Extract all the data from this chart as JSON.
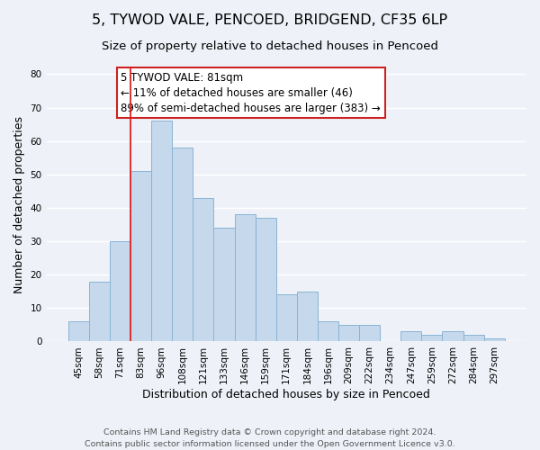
{
  "title": "5, TYWOD VALE, PENCOED, BRIDGEND, CF35 6LP",
  "subtitle": "Size of property relative to detached houses in Pencoed",
  "xlabel": "Distribution of detached houses by size in Pencoed",
  "ylabel": "Number of detached properties",
  "categories": [
    "45sqm",
    "58sqm",
    "71sqm",
    "83sqm",
    "96sqm",
    "108sqm",
    "121sqm",
    "133sqm",
    "146sqm",
    "159sqm",
    "171sqm",
    "184sqm",
    "196sqm",
    "209sqm",
    "222sqm",
    "234sqm",
    "247sqm",
    "259sqm",
    "272sqm",
    "284sqm",
    "297sqm"
  ],
  "values": [
    6,
    18,
    30,
    51,
    66,
    58,
    43,
    34,
    38,
    37,
    14,
    15,
    6,
    5,
    5,
    0,
    3,
    2,
    3,
    2,
    1
  ],
  "bar_color": "#c5d8ec",
  "bar_edge_color": "#8ab4d4",
  "vline_x_index": 3,
  "vline_color": "#dd2222",
  "annotation_text_line1": "5 TYWOD VALE: 81sqm",
  "annotation_text_line2": "← 11% of detached houses are smaller (46)",
  "annotation_text_line3": "89% of semi-detached houses are larger (383) →",
  "ylim": [
    0,
    82
  ],
  "yticks": [
    0,
    10,
    20,
    30,
    40,
    50,
    60,
    70,
    80
  ],
  "footer_line1": "Contains HM Land Registry data © Crown copyright and database right 2024.",
  "footer_line2": "Contains public sector information licensed under the Open Government Licence v3.0.",
  "background_color": "#eef2f8",
  "grid_color": "#ffffff",
  "title_fontsize": 11.5,
  "subtitle_fontsize": 9.5,
  "axis_label_fontsize": 9,
  "tick_fontsize": 7.5,
  "annotation_fontsize": 8.5,
  "footer_fontsize": 6.8
}
